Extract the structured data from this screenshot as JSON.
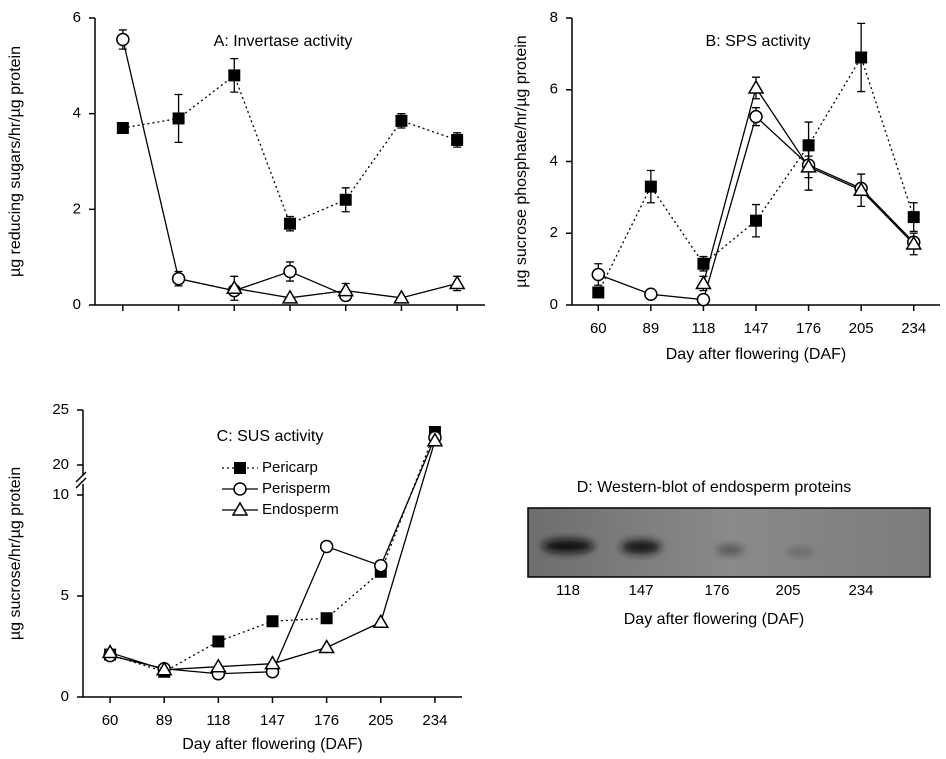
{
  "chart_data": [
    {
      "type": "line",
      "title": "A: Invertase activity",
      "y_label": "µg reducing sugars/hr/µg protein",
      "categories": [
        null,
        null,
        null,
        null,
        null,
        null,
        null
      ],
      "ylim": [
        0,
        6
      ],
      "yticks": [
        0,
        2,
        4,
        6
      ],
      "series": [
        {
          "color": "#000000",
          "marker": "square",
          "dash": "dotted",
          "values": [
            3.7,
            3.9,
            4.8,
            1.7,
            2.2,
            3.85,
            3.45
          ],
          "errors": [
            null,
            0.5,
            0.35,
            0.15,
            0.25,
            0.15,
            0.15
          ]
        },
        {
          "color": "#000000",
          "marker": "circle",
          "dash": "solid",
          "values": [
            5.55,
            0.55,
            0.3,
            0.7,
            0.2,
            null,
            null
          ],
          "errors": [
            0.2,
            0.15,
            null,
            0.2,
            null,
            null,
            null
          ]
        },
        {
          "color": "#000000",
          "marker": "triangle",
          "dash": "solid",
          "values": [
            null,
            null,
            0.35,
            0.15,
            0.3,
            0.15,
            0.45
          ],
          "errors": [
            null,
            null,
            0.25,
            null,
            0.15,
            null,
            0.15
          ]
        }
      ]
    },
    {
      "type": "line",
      "title": "B: SPS activity",
      "x_label": "Day after flowering (DAF)",
      "y_label": "µg sucrose phosphate/hr/µg protein",
      "categories": [
        "60",
        "89",
        "118",
        "147",
        "176",
        "205",
        "234"
      ],
      "ylim": [
        0,
        8
      ],
      "yticks": [
        0,
        2,
        4,
        6,
        8
      ],
      "series": [
        {
          "color": "#000000",
          "marker": "square",
          "dash": "dotted",
          "values": [
            0.35,
            3.3,
            1.15,
            2.35,
            4.45,
            6.9,
            2.45
          ],
          "errors": [
            null,
            0.45,
            0.2,
            0.45,
            0.65,
            0.95,
            0.4
          ]
        },
        {
          "color": "#000000",
          "marker": "circle",
          "dash": "solid",
          "values": [
            0.85,
            0.3,
            0.15,
            5.25,
            3.9,
            3.25,
            1.75
          ],
          "errors": [
            0.3,
            null,
            null,
            0.25,
            0.7,
            null,
            null
          ]
        },
        {
          "color": "#000000",
          "marker": "triangle",
          "dash": "solid",
          "values": [
            null,
            null,
            0.6,
            6.05,
            3.85,
            3.2,
            1.7
          ],
          "errors": [
            null,
            null,
            0.2,
            0.3,
            0.3,
            0.45,
            0.3
          ]
        }
      ]
    },
    {
      "type": "line",
      "title": "C: SUS activity",
      "x_label": "Day after flowering (DAF)",
      "y_label": "µg sucrose/hr/µg protein",
      "categories": [
        "60",
        "89",
        "118",
        "147",
        "176",
        "205",
        "234"
      ],
      "ylim": [
        0,
        25
      ],
      "ybreak": [
        10,
        20
      ],
      "yticks": [
        0,
        5,
        10,
        20,
        25
      ],
      "legend": true,
      "legend_position": "upper center",
      "series": [
        {
          "name": "Pericarp",
          "color": "#000000",
          "marker": "square",
          "dash": "dotted",
          "values": [
            2.1,
            1.25,
            2.75,
            3.75,
            3.9,
            6.2,
            23
          ]
        },
        {
          "name": "Perisperm",
          "color": "#000000",
          "marker": "circle",
          "dash": "solid",
          "values": [
            2.05,
            1.4,
            1.15,
            1.25,
            7.45,
            6.5,
            22.5
          ]
        },
        {
          "name": "Endosperm",
          "color": "#000000",
          "marker": "triangle",
          "dash": "solid",
          "values": [
            2.2,
            1.35,
            1.5,
            1.65,
            2.45,
            3.7,
            22.2
          ]
        }
      ]
    }
  ],
  "blot": {
    "title": "D: Western-blot of endosperm proteins",
    "lanes": [
      "118",
      "147",
      "176",
      "205",
      "234"
    ],
    "x_label": "Day after flowering (DAF)"
  }
}
